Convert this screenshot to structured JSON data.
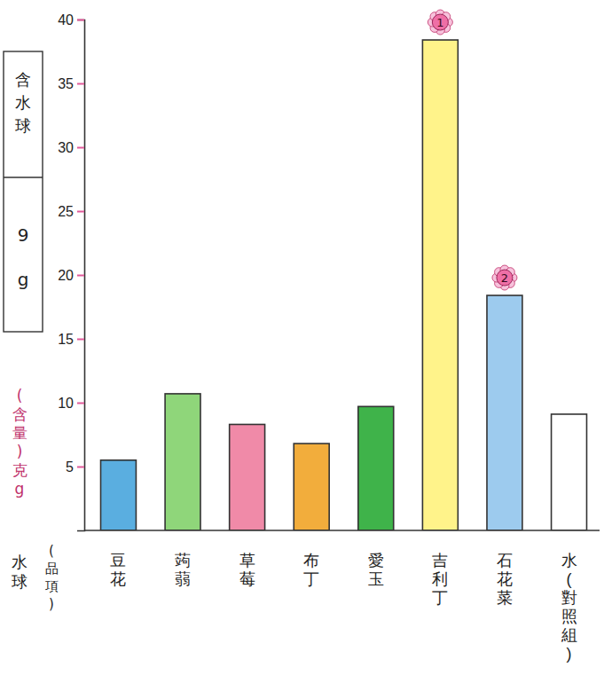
{
  "chart_data": {
    "type": "bar",
    "y_label": "(含量)克g",
    "x_label": [
      "水球",
      "(品項)"
    ],
    "categories": [
      "豆花",
      "蒟蒻",
      "草莓",
      "布丁",
      "愛玉",
      "吉利丁",
      "石花菜",
      "水(對照組)"
    ],
    "values": [
      5.5,
      10.7,
      8.3,
      6.8,
      9.7,
      38.4,
      18.4,
      9.1
    ],
    "colors": [
      "#5aaee0",
      "#8fd67a",
      "#f08aa8",
      "#f2ad3c",
      "#3fb34a",
      "#fff38a",
      "#9dcbee",
      "#ffffff"
    ],
    "ylim": [
      0,
      40
    ],
    "yticks": [
      5,
      10,
      15,
      20,
      25,
      30,
      35,
      40
    ],
    "grid": false,
    "annotations": {
      "box": [
        "含水球",
        "9g"
      ],
      "badges": [
        {
          "text": "1",
          "category": "吉利丁"
        },
        {
          "text": "2",
          "category": "石花菜"
        }
      ]
    }
  }
}
